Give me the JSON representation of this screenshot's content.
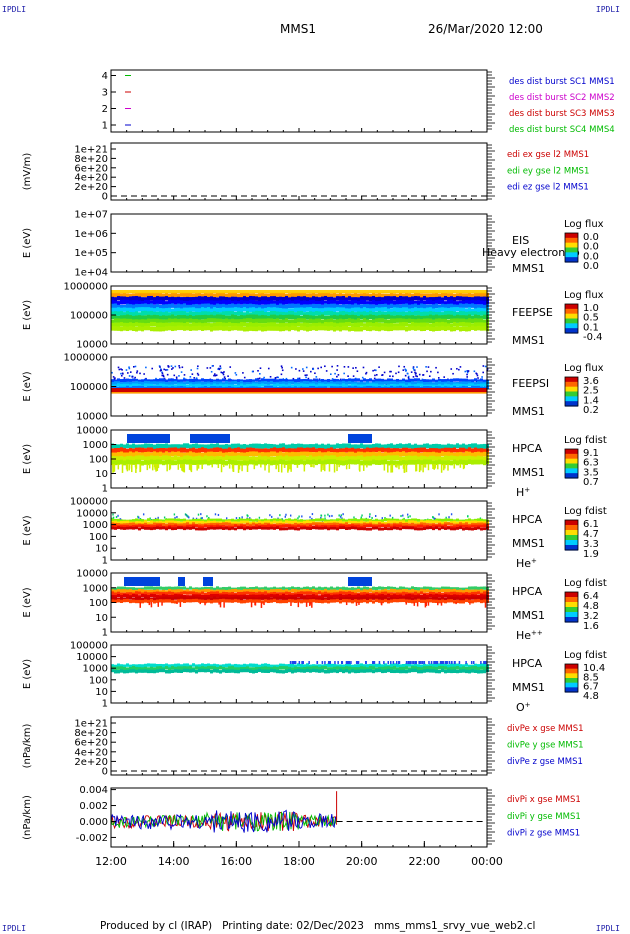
{
  "corner_label": "IPDLI",
  "header": {
    "spacecraft": "MMS1",
    "datetime": "26/Mar/2020 12:00"
  },
  "footer": {
    "produced_by": "Produced by cl (IRAP)",
    "printing_date": "Printing date: 02/Dec/2023",
    "filename": "mms_mms1_srvy_vue_web2.cl"
  },
  "time_axis": {
    "ticks": [
      "12:00",
      "14:00",
      "16:00",
      "18:00",
      "20:00",
      "22:00",
      "00:00"
    ],
    "x_range_hours": [
      12,
      24
    ]
  },
  "chart_data": [
    {
      "type": "line",
      "panel": "availability",
      "yticks": [
        "1",
        "2",
        "3",
        "4"
      ],
      "legend": [
        {
          "name": "des dist burst SC1 MMS1",
          "color": "#0000cc"
        },
        {
          "name": "des dist burst SC2 MMS2",
          "color": "#cc00cc"
        },
        {
          "name": "des dist burst SC3 MMS3",
          "color": "#cc0000"
        },
        {
          "name": "des dist burst SC4 MMS4",
          "color": "#00bb00"
        }
      ],
      "markers": [
        {
          "y": 4,
          "color": "#00bb00"
        },
        {
          "y": 3,
          "color": "#cc0000"
        },
        {
          "y": 2,
          "color": "#cc00cc"
        },
        {
          "y": 1,
          "color": "#0000cc"
        }
      ]
    },
    {
      "type": "line",
      "panel": "edi",
      "ylabel": "(mV/m)",
      "yticks": [
        "0",
        "2e+20",
        "4e+20",
        "6e+20",
        "8e+20",
        "1e+21"
      ],
      "legend": [
        {
          "name": "edi ex gse l2 MMS1",
          "color": "#cc0000"
        },
        {
          "name": "edi ey gse l2 MMS1",
          "color": "#00bb00"
        },
        {
          "name": "edi ez gse l2 MMS1",
          "color": "#0000cc"
        }
      ],
      "zero_line": true
    },
    {
      "type": "heatmap",
      "panel": "eis",
      "ylabel": "E (eV)",
      "yticks": [
        "1e+04",
        "1e+05",
        "1e+06",
        "1e+07"
      ],
      "instrument": "EIS",
      "spacecraft": "MMS1",
      "overlay_text": "Heavy electron to",
      "colorbar_title": "Log flux",
      "colorbar_ticks": [
        "0.0",
        "0.0",
        "0.0",
        "0.0"
      ],
      "empty": true
    },
    {
      "type": "heatmap",
      "panel": "feepse",
      "ylabel": "E (eV)",
      "yticks": [
        "10000",
        "100000",
        "1000000"
      ],
      "instrument": "FEEPSE",
      "spacecraft": "MMS1",
      "colorbar_title": "Log flux",
      "colorbar_ticks": [
        "1.0",
        "0.5",
        "0.1",
        "-0.4"
      ]
    },
    {
      "type": "heatmap",
      "panel": "feepsi",
      "ylabel": "E (eV)",
      "yticks": [
        "10000",
        "100000",
        "1000000"
      ],
      "instrument": "FEEPSI",
      "spacecraft": "MMS1",
      "colorbar_title": "Log flux",
      "colorbar_ticks": [
        "3.6",
        "2.5",
        "1.4",
        "0.2"
      ]
    },
    {
      "type": "heatmap",
      "panel": "hpca_h",
      "ylabel": "E (eV)",
      "yticks": [
        "1",
        "10",
        "100",
        "1000",
        "10000"
      ],
      "instrument": "HPCA",
      "spacecraft": "MMS1",
      "species": "H",
      "species_charge": "+",
      "colorbar_title": "Log fdist",
      "colorbar_ticks": [
        "9.1",
        "6.3",
        "3.5",
        "0.7"
      ]
    },
    {
      "type": "heatmap",
      "panel": "hpca_he1",
      "ylabel": "E (eV)",
      "yticks": [
        "1",
        "10",
        "100",
        "1000",
        "10000",
        "100000"
      ],
      "instrument": "HPCA",
      "spacecraft": "MMS1",
      "species": "He",
      "species_charge": "+",
      "colorbar_title": "Log fdist",
      "colorbar_ticks": [
        "6.1",
        "4.7",
        "3.3",
        "1.9"
      ]
    },
    {
      "type": "heatmap",
      "panel": "hpca_he2",
      "ylabel": "E (eV)",
      "yticks": [
        "1",
        "10",
        "100",
        "1000",
        "10000"
      ],
      "instrument": "HPCA",
      "spacecraft": "MMS1",
      "species": "He",
      "species_charge": "++",
      "colorbar_title": "Log fdist",
      "colorbar_ticks": [
        "6.4",
        "4.8",
        "3.2",
        "1.6"
      ]
    },
    {
      "type": "heatmap",
      "panel": "hpca_o",
      "ylabel": "E (eV)",
      "yticks": [
        "1",
        "10",
        "100",
        "1000",
        "10000",
        "100000"
      ],
      "instrument": "HPCA",
      "spacecraft": "MMS1",
      "species": "O",
      "species_charge": "+",
      "colorbar_title": "Log fdist",
      "colorbar_ticks": [
        "10.4",
        "8.5",
        "6.7",
        "4.8"
      ]
    },
    {
      "type": "line",
      "panel": "divpe",
      "ylabel": "(nPa/km)",
      "yticks": [
        "0",
        "2e+20",
        "4e+20",
        "6e+20",
        "8e+20",
        "1e+21"
      ],
      "legend": [
        {
          "name": "divPe x gse MMS1",
          "color": "#cc0000"
        },
        {
          "name": "divPe y gse MMS1",
          "color": "#00bb00"
        },
        {
          "name": "divPe z gse MMS1",
          "color": "#0000cc"
        }
      ],
      "zero_line": true
    },
    {
      "type": "line",
      "panel": "divpi",
      "ylabel": "(nPa/km)",
      "yticks": [
        "-0.002",
        "0.000",
        "0.002",
        "0.004"
      ],
      "ylim": [
        -0.0032,
        0.0042
      ],
      "data_end_hour": 19.2,
      "legend": [
        {
          "name": "divPi x gse MMS1",
          "color": "#cc0000"
        },
        {
          "name": "divPi y gse MMS1",
          "color": "#00bb00"
        },
        {
          "name": "divPi z gse MMS1",
          "color": "#0000cc"
        }
      ],
      "zero_line": true
    }
  ]
}
